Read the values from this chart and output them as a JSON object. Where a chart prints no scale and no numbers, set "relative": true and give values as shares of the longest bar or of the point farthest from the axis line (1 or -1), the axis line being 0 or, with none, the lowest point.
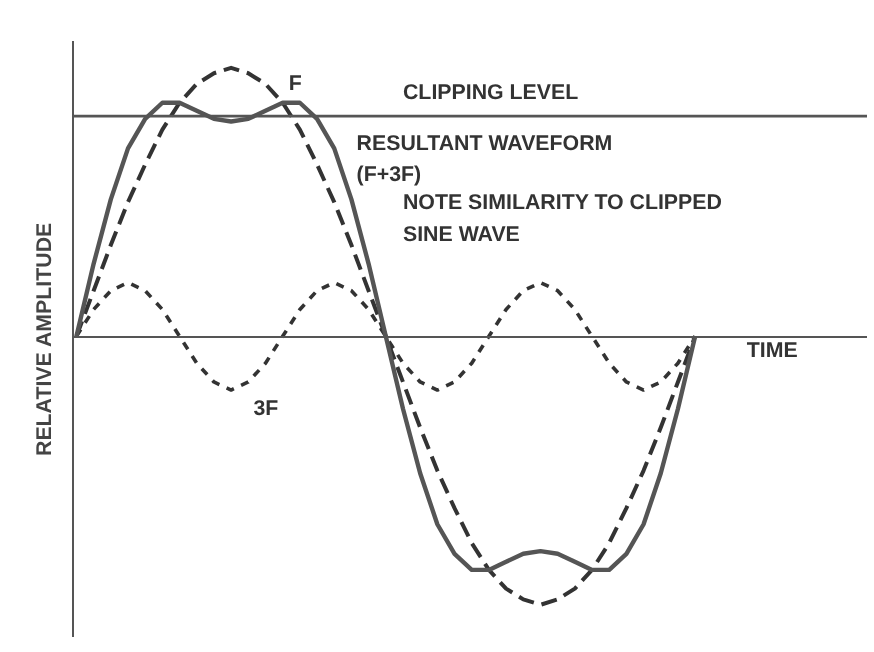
{
  "chart_data": {
    "type": "line",
    "relative": true,
    "ylabel": "RELATIVE AMPLITUDE",
    "xlabel": "TIME",
    "grid": false,
    "marker": "none",
    "categories": [
      null,
      null,
      null,
      null,
      null,
      null,
      null,
      null,
      null,
      null,
      null,
      null,
      null,
      null,
      null,
      null,
      null,
      null,
      null,
      null,
      null,
      null,
      null,
      null,
      null,
      null,
      null,
      null,
      null,
      null,
      null,
      null,
      null,
      null,
      null,
      null,
      null
    ],
    "series": [
      {
        "name": "F",
        "color": "#333333",
        "line_style": "dashed",
        "values": [
          0,
          0.17,
          0.34,
          0.5,
          0.64,
          0.77,
          0.87,
          0.94,
          0.98,
          1,
          0.98,
          0.94,
          0.87,
          0.77,
          0.64,
          0.5,
          0.34,
          0.17,
          0,
          -0.17,
          -0.34,
          -0.5,
          -0.64,
          -0.77,
          -0.87,
          -0.94,
          -0.98,
          -1,
          -0.98,
          -0.94,
          -0.87,
          -0.77,
          -0.64,
          -0.5,
          -0.34,
          -0.17,
          0
        ]
      },
      {
        "name": "3F",
        "color": "#333333",
        "line_style": "dotted",
        "values": [
          0,
          0.1,
          0.17,
          0.2,
          0.17,
          0.1,
          0,
          -0.1,
          -0.17,
          -0.2,
          -0.17,
          -0.1,
          0,
          0.1,
          0.17,
          0.2,
          0.17,
          0.1,
          0,
          -0.1,
          -0.17,
          -0.2,
          -0.17,
          -0.1,
          0,
          0.1,
          0.17,
          0.2,
          0.17,
          0.1,
          0,
          -0.1,
          -0.17,
          -0.2,
          -0.17,
          -0.1,
          0
        ]
      },
      {
        "name": "RESULTANT WAVEFORM\n(F+3F)",
        "color": "#555555",
        "line_style": "solid",
        "values": [
          0,
          0.27,
          0.51,
          0.7,
          0.81,
          0.87,
          0.87,
          0.84,
          0.81,
          0.8,
          0.81,
          0.84,
          0.87,
          0.87,
          0.81,
          0.7,
          0.51,
          0.27,
          0,
          -0.27,
          -0.51,
          -0.7,
          -0.81,
          -0.87,
          -0.87,
          -0.84,
          -0.81,
          -0.8,
          -0.81,
          -0.84,
          -0.87,
          -0.87,
          -0.81,
          -0.7,
          -0.51,
          -0.27,
          0
        ]
      }
    ],
    "ref_lines": [
      {
        "axis": "y",
        "value": 0.82,
        "label": "CLIPPING LEVEL",
        "color": "#555555"
      }
    ],
    "annotations": [
      "NOTE SIMILARITY TO CLIPPED\nSINE WAVE"
    ]
  }
}
